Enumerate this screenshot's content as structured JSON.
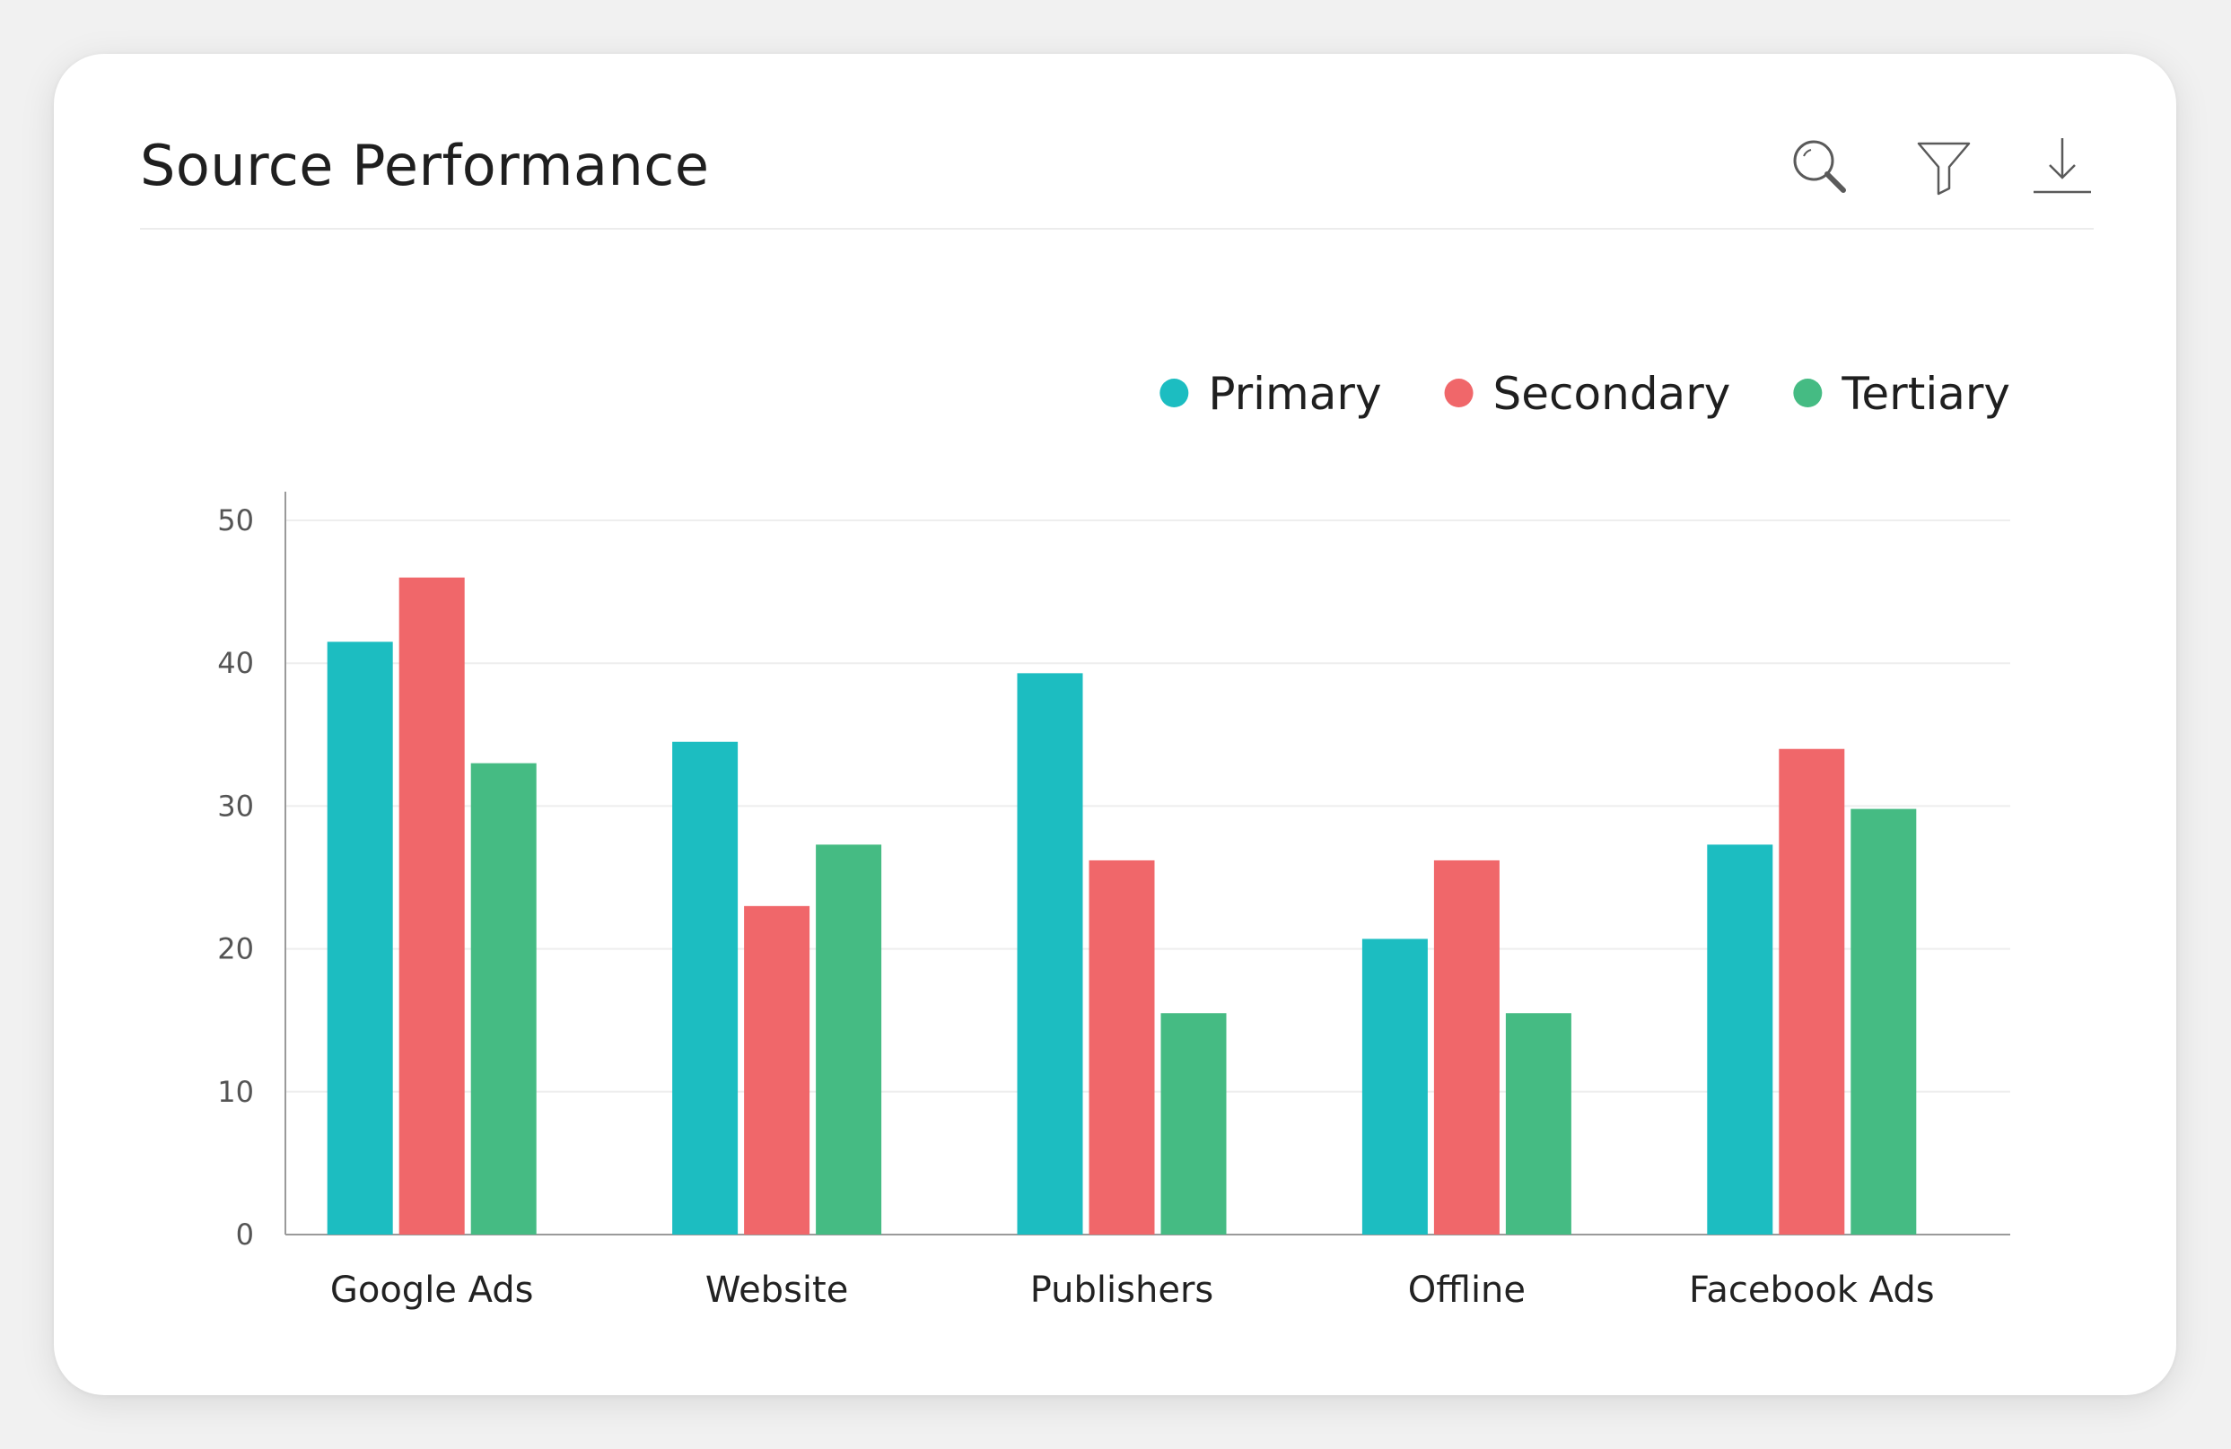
{
  "header": {
    "title": "Source Performance",
    "tools": [
      {
        "icon": "search-icon"
      },
      {
        "icon": "filter-icon"
      },
      {
        "icon": "download-icon"
      }
    ]
  },
  "colors": {
    "primary": "#1cbdc1",
    "secondary": "#f0676a",
    "tertiary": "#45bb83"
  },
  "chart_data": {
    "type": "bar",
    "categories": [
      "Google Ads",
      "Website",
      "Publishers",
      "Offline",
      "Facebook Ads"
    ],
    "series": [
      {
        "name": "Primary",
        "color": "#1cbdc1",
        "values": [
          41.5,
          34.5,
          39.3,
          20.7,
          27.3
        ]
      },
      {
        "name": "Secondary",
        "color": "#f0676a",
        "values": [
          46,
          23,
          26.2,
          26.2,
          34
        ]
      },
      {
        "name": "Tertiary",
        "color": "#45bb83",
        "values": [
          33,
          27.3,
          15.5,
          15.5,
          29.8
        ]
      }
    ],
    "yticks": [
      "0",
      "10",
      "20",
      "30",
      "40",
      "50"
    ],
    "ylim": [
      0,
      50
    ],
    "grid": true,
    "legend": "top-right"
  }
}
